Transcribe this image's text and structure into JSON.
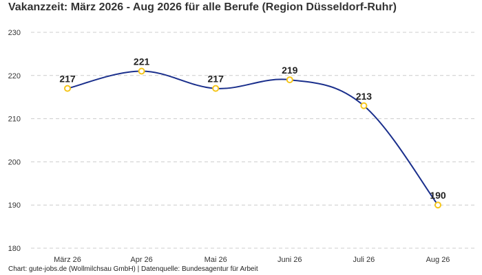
{
  "chart_data": {
    "type": "line",
    "title": "Vakanzzeit: März 2026 - Aug 2026 für alle Berufe (Region Düsseldorf-Ruhr)",
    "categories": [
      "März 26",
      "Apr 26",
      "Mai 26",
      "Juni 26",
      "Juli 26",
      "Aug 26"
    ],
    "values": [
      217,
      221,
      217,
      219,
      213,
      190
    ],
    "ylim": [
      180,
      230
    ],
    "yticks": [
      180,
      190,
      200,
      210,
      220,
      230
    ],
    "grid": true,
    "legend": "none",
    "colors": {
      "line": "#1a2f8c",
      "marker": "#f5c518",
      "grid": "#cccccc"
    }
  },
  "footer": "Chart: gute-jobs.de (Wollmilchsau GmbH) | Datenquelle: Bundesagentur für Arbeit"
}
